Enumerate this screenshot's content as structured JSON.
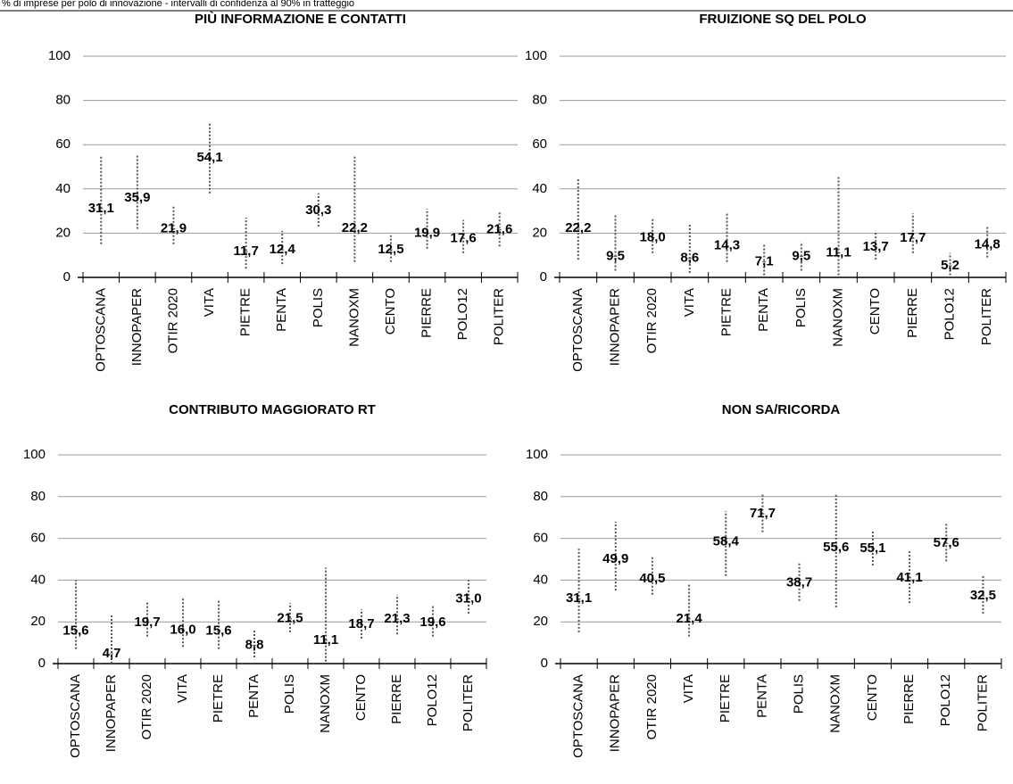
{
  "header": "% di imprese per polo di innovazione - intervalli di confidenza al 90% in tratteggio",
  "chart_data": [
    {
      "type": "errorbar",
      "title": "PIÙ INFORMAZIONE E CONTATTI",
      "categories": [
        "OPTOSCANA",
        "INNOPAPER",
        "OTIR 2020",
        "VITA",
        "PIETRE",
        "PENTA",
        "POLIS",
        "NANOXM",
        "CENTO",
        "PIERRE",
        "POLO12",
        "POLITER"
      ],
      "values": [
        31.1,
        35.9,
        21.9,
        54.1,
        11.7,
        12.4,
        30.3,
        22.2,
        12.5,
        19.9,
        17.6,
        21.6
      ],
      "value_labels": [
        "31,1",
        "35,9",
        "21,9",
        "54,1",
        "11,7",
        "12,4",
        "30,3",
        "22,2",
        "12,5",
        "19,9",
        "17,6",
        "21,6"
      ],
      "lower": [
        15,
        22,
        15,
        38,
        4,
        6,
        23,
        7,
        7,
        13,
        11,
        14
      ],
      "upper": [
        55,
        55,
        32,
        70,
        27,
        21,
        38,
        55,
        19,
        31,
        26,
        30
      ],
      "ylim": [
        0,
        100
      ],
      "yticks": [
        0,
        20,
        40,
        60,
        80,
        100
      ],
      "grid": true,
      "color": "#555555"
    },
    {
      "type": "errorbar",
      "title": "FRUIZIONE SQ DEL POLO",
      "categories": [
        "OPTOSCANA",
        "INNOPAPER",
        "OTIR 2020",
        "VITA",
        "PIETRE",
        "PENTA",
        "POLIS",
        "NANOXM",
        "CENTO",
        "PIERRE",
        "POLO12",
        "POLITER"
      ],
      "values": [
        22.2,
        9.5,
        18.0,
        8.6,
        14.3,
        7.1,
        9.5,
        11.1,
        13.7,
        17.7,
        5.2,
        14.8
      ],
      "value_labels": [
        "22,2",
        "9,5",
        "18,0",
        "8,6",
        "14,3",
        "7,1",
        "9,5",
        "11,1",
        "13,7",
        "17,7",
        "5,2",
        "14,8"
      ],
      "lower": [
        8,
        3,
        11,
        2,
        7,
        1,
        3,
        1,
        8,
        11,
        1,
        9
      ],
      "upper": [
        45,
        28,
        27,
        24,
        29,
        15,
        16,
        46,
        21,
        29,
        11,
        23
      ],
      "ylim": [
        0,
        100
      ],
      "yticks": [
        0,
        20,
        40,
        60,
        80,
        100
      ],
      "grid": true,
      "color": "#555555"
    },
    {
      "type": "errorbar",
      "title": "CONTRIBUTO MAGGIORATO RT",
      "categories": [
        "OPTOSCANA",
        "INNOPAPER",
        "OTIR 2020",
        "VITA",
        "PIETRE",
        "PENTA",
        "POLIS",
        "NANOXM",
        "CENTO",
        "PIERRE",
        "POLO12",
        "POLITER"
      ],
      "values": [
        15.6,
        4.7,
        19.7,
        16.0,
        15.6,
        8.8,
        21.5,
        11.1,
        18.7,
        21.3,
        19.6,
        31.0
      ],
      "value_labels": [
        "15,6",
        "4,7",
        "19,7",
        "16,0",
        "15,6",
        "8,8",
        "21,5",
        "11,1",
        "18,7",
        "21,3",
        "19,6",
        "31,0"
      ],
      "lower": [
        7,
        0,
        13,
        8,
        7,
        3,
        15,
        1,
        12,
        14,
        13,
        24
      ],
      "upper": [
        40,
        23,
        30,
        32,
        31,
        16,
        29,
        46,
        26,
        33,
        28,
        40
      ],
      "ylim": [
        0,
        100
      ],
      "yticks": [
        0,
        20,
        40,
        60,
        80,
        100
      ],
      "grid": true,
      "color": "#555555"
    },
    {
      "type": "errorbar",
      "title": "NON SA/RICORDA",
      "categories": [
        "OPTOSCANA",
        "INNOPAPER",
        "OTIR 2020",
        "VITA",
        "PIETRE",
        "PENTA",
        "POLIS",
        "NANOXM",
        "CENTO",
        "PIERRE",
        "POLO12",
        "POLITER"
      ],
      "values": [
        31.1,
        49.9,
        40.5,
        21.4,
        58.4,
        71.7,
        38.7,
        55.6,
        55.1,
        41.1,
        57.6,
        32.5
      ],
      "value_labels": [
        "31,1",
        "49,9",
        "40,5",
        "21,4",
        "58,4",
        "71,7",
        "38,7",
        "55,6",
        "55,1",
        "41,1",
        "57,6",
        "32,5"
      ],
      "lower": [
        15,
        35,
        33,
        13,
        42,
        63,
        30,
        27,
        47,
        29,
        49,
        24
      ],
      "upper": [
        55,
        68,
        51,
        38,
        73,
        81,
        48,
        81,
        64,
        54,
        67,
        42
      ],
      "ylim": [
        0,
        100
      ],
      "yticks": [
        0,
        20,
        40,
        60,
        80,
        100
      ],
      "grid": true,
      "color": "#555555"
    }
  ]
}
